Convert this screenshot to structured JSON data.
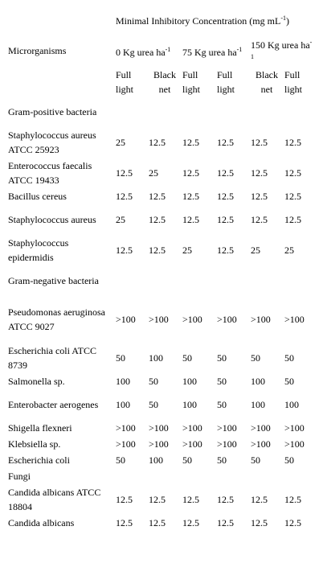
{
  "header": {
    "row_label": "Microrganisms",
    "mic_title_part1": "Minimal Inhibitory Concentration (mg mL",
    "mic_title_sup": "-1",
    "mic_title_part2": ")",
    "groups": [
      {
        "label": "0 Kg urea ha",
        "sup": "-1"
      },
      {
        "label": "75 Kg urea ha",
        "sup": "-1"
      },
      {
        "label": "150 Kg urea ha",
        "sup": "-1"
      }
    ],
    "subcols": [
      "Full light",
      "Black net",
      "Full light",
      "Full light",
      "Black net",
      "Full light"
    ]
  },
  "rows": [
    {
      "type": "section",
      "label": "Gram-positive bacteria"
    },
    {
      "type": "data",
      "label": "Staphylococcus aureus ATCC 25923",
      "values": [
        "25",
        "12.5",
        "12.5",
        "12.5",
        "12.5",
        "12.5"
      ]
    },
    {
      "type": "data",
      "label": "Enterococcus faecalis ATCC 19433",
      "values": [
        "12.5",
        "25",
        "12.5",
        "12.5",
        "12.5",
        "12.5"
      ]
    },
    {
      "type": "data",
      "label": "Bacillus cereus",
      "values": [
        "12.5",
        "12.5",
        "12.5",
        "12.5",
        "12.5",
        "12.5"
      ]
    },
    {
      "type": "data",
      "label": "Staphylococcus aureus",
      "values": [
        "25",
        "12.5",
        "12.5",
        "12.5",
        "12.5",
        "12.5"
      ]
    },
    {
      "type": "data",
      "label": "Staphylococcus epidermidis",
      "values": [
        "12.5",
        "12.5",
        "25",
        "12.5",
        "25",
        "25"
      ]
    },
    {
      "type": "section",
      "label": "Gram-negative bacteria"
    },
    {
      "type": "data",
      "label": "Pseudomonas aeruginosa ATCC 9027",
      "values": [
        ">100",
        ">100",
        ">100",
        ">100",
        ">100",
        ">100"
      ]
    },
    {
      "type": "data",
      "label": "Escherichia coli ATCC 8739",
      "values": [
        "50",
        "100",
        "50",
        "50",
        "50",
        "50"
      ]
    },
    {
      "type": "data",
      "label": "Salmonella sp.",
      "values": [
        "100",
        "50",
        "100",
        "50",
        "100",
        "50"
      ]
    },
    {
      "type": "data",
      "label": "Enterobacter aerogenes",
      "values": [
        "100",
        "50",
        "100",
        "50",
        "100",
        "100"
      ]
    },
    {
      "type": "data",
      "label": "Shigella flexneri",
      "values": [
        ">100",
        ">100",
        ">100",
        ">100",
        ">100",
        ">100"
      ]
    },
    {
      "type": "data",
      "label": "Klebsiella sp.",
      "values": [
        ">100",
        ">100",
        ">100",
        ">100",
        ">100",
        ">100"
      ]
    },
    {
      "type": "data",
      "label": "Escherichia coli",
      "values": [
        "50",
        "100",
        "50",
        "50",
        "50",
        "50"
      ]
    },
    {
      "type": "section",
      "label": "Fungi"
    },
    {
      "type": "data",
      "label": "Candida albicans ATCC 18804",
      "values": [
        "12.5",
        "12.5",
        "12.5",
        "12.5",
        "12.5",
        "12.5"
      ]
    },
    {
      "type": "data",
      "label": "Candida albicans",
      "values": [
        "12.5",
        "12.5",
        "12.5",
        "12.5",
        "12.5",
        "12.5"
      ]
    }
  ]
}
